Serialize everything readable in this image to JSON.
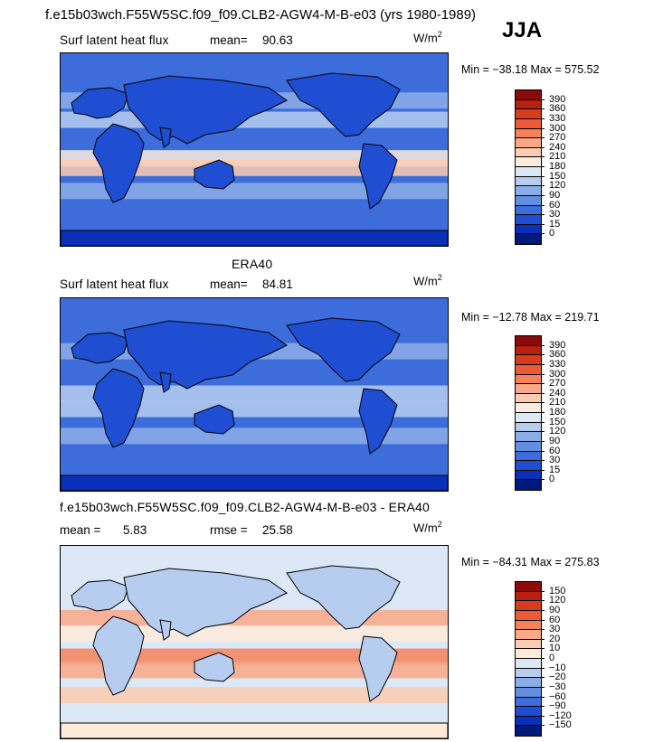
{
  "header": {
    "title": "f.e15b03wch.F55W5SC.f09_f09.CLB2-AGW4-M-B-e03 (yrs 1980-1989)",
    "season": "JJA"
  },
  "panels": [
    {
      "heading": "",
      "label": "Surf latent heat flux",
      "stat1_label": "mean=",
      "stat1_value": "90.63",
      "stat2_label": "",
      "stat2_value": "",
      "units": "W/m",
      "units_sup": "2",
      "minmax": "Min = −38.18 Max = 575.52",
      "colorbar": {
        "labels": [
          "390",
          "360",
          "330",
          "300",
          "270",
          "240",
          "210",
          "180",
          "150",
          "120",
          "90",
          "60",
          "30",
          "15",
          "0"
        ],
        "colors": [
          "#8b0a0a",
          "#b8200f",
          "#d93c1d",
          "#ee5a35",
          "#f6825c",
          "#f9a888",
          "#fbcbb2",
          "#f9ecdf",
          "#dce8f6",
          "#b6cdf0",
          "#8caee8",
          "#648fe0",
          "#3c6ddb",
          "#1f4ed2",
          "#0a2fb8",
          "#001a7a"
        ]
      },
      "palette_type": "model"
    },
    {
      "heading": "ERA40",
      "label": "Surf latent heat flux",
      "stat1_label": "mean=",
      "stat1_value": "84.81",
      "stat2_label": "",
      "stat2_value": "",
      "units": "W/m",
      "units_sup": "2",
      "minmax": "Min = −12.78 Max = 219.71",
      "colorbar": {
        "labels": [
          "390",
          "360",
          "330",
          "300",
          "270",
          "240",
          "210",
          "180",
          "150",
          "120",
          "90",
          "60",
          "30",
          "15",
          "0"
        ],
        "colors": [
          "#8b0a0a",
          "#b8200f",
          "#d93c1d",
          "#ee5a35",
          "#f6825c",
          "#f9a888",
          "#fbcbb2",
          "#f9ecdf",
          "#dce8f6",
          "#b6cdf0",
          "#8caee8",
          "#648fe0",
          "#3c6ddb",
          "#1f4ed2",
          "#0a2fb8",
          "#001a7a"
        ]
      },
      "palette_type": "obs"
    },
    {
      "heading": "f.e15b03wch.F55W5SC.f09_f09.CLB2-AGW4-M-B-e03 - ERA40",
      "label": "",
      "stat1_label": "mean =",
      "stat1_value": "5.83",
      "stat2_label": "rmse =",
      "stat2_value": "25.58",
      "units": "W/m",
      "units_sup": "2",
      "minmax": "Min = −84.31 Max = 275.83",
      "colorbar": {
        "labels": [
          "150",
          "120",
          "90",
          "60",
          "30",
          "20",
          "10",
          "0",
          "−10",
          "−20",
          "−30",
          "−60",
          "−90",
          "−120",
          "−150"
        ],
        "colors": [
          "#8b0a0a",
          "#b8200f",
          "#d93c1d",
          "#ee5a35",
          "#f6825c",
          "#f9a888",
          "#fbcbb2",
          "#fdeadb",
          "#dce8f6",
          "#b6cdf0",
          "#8caee8",
          "#648fe0",
          "#3c6ddb",
          "#1f4ed2",
          "#0a2fb8",
          "#001a7a"
        ]
      },
      "palette_type": "diff"
    }
  ]
}
